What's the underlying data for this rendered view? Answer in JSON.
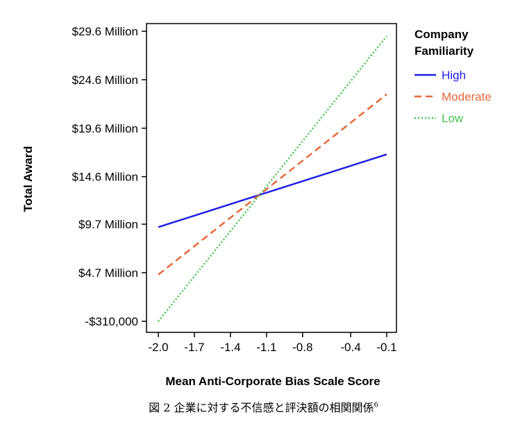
{
  "chart_data": {
    "type": "line",
    "xlabel": "Mean Anti-Corporate Bias Scale Score",
    "ylabel": "Total Award",
    "x_ticks": [
      -2.0,
      -1.7,
      -1.4,
      -1.1,
      -0.8,
      -0.4,
      -0.1
    ],
    "x_tick_labels": [
      "-2.0",
      "-1.7",
      "-1.4",
      "-1.1",
      "-0.8",
      "-0.4",
      "-0.1"
    ],
    "y_ticks": [
      -310000,
      4700000,
      9700000,
      14600000,
      19600000,
      24600000,
      29600000
    ],
    "y_tick_labels": [
      "-$310,000",
      "$4.7 Million",
      "$9.7 Million",
      "$14.6 Million",
      "$19.6 Million",
      "$24.6 Million",
      "$29.6 Million"
    ],
    "xlim": [
      -2.1,
      0.0
    ],
    "ylim": [
      -310000,
      29600000
    ],
    "grid": false,
    "legend": {
      "title_lines": [
        "Company",
        "Familiarity"
      ],
      "position": "right"
    },
    "series": [
      {
        "name": "High",
        "color": "#1f1fe6",
        "style": "solid",
        "x": [
          -2.0,
          -0.1
        ],
        "y": [
          9400000,
          16900000
        ]
      },
      {
        "name": "Moderate",
        "color": "#e8683a",
        "style": "dashed",
        "x": [
          -2.0,
          -0.1
        ],
        "y": [
          4500000,
          23100000
        ]
      },
      {
        "name": "Low",
        "color": "#44c24a",
        "style": "dotted",
        "x": [
          -2.0,
          -0.1
        ],
        "y": [
          -310000,
          29100000
        ]
      }
    ]
  },
  "caption": {
    "text": "図 2 企業に対する不信感と評決額の相関関係",
    "note": "6"
  }
}
